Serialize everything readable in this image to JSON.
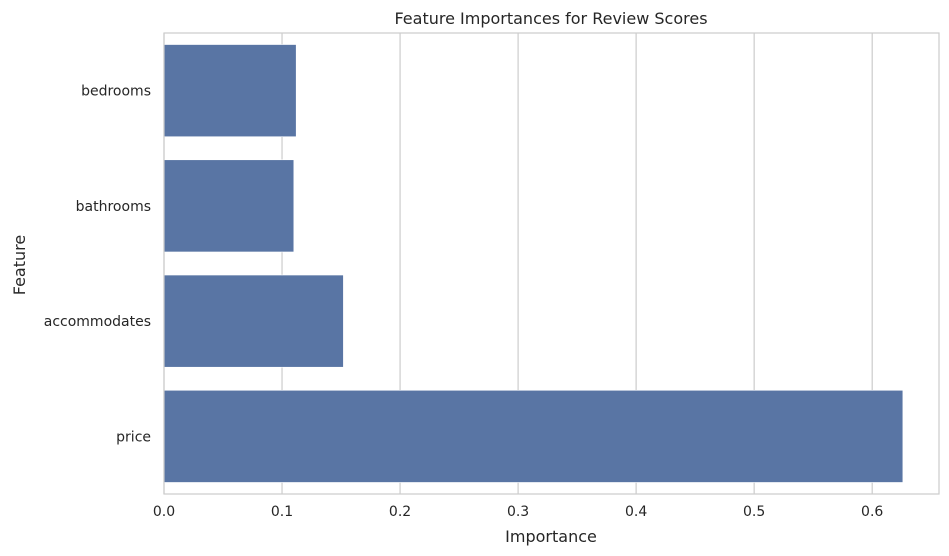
{
  "chart_data": {
    "type": "bar",
    "orientation": "horizontal",
    "title": "Feature Importances for Review Scores",
    "xlabel": "Importance",
    "ylabel": "Feature",
    "categories": [
      "bedrooms",
      "bathrooms",
      "accommodates",
      "price"
    ],
    "values": [
      0.112,
      0.11,
      0.152,
      0.626
    ],
    "xlim": [
      0,
      0.6566
    ],
    "xticks": [
      0.0,
      0.1,
      0.2,
      0.3,
      0.4,
      0.5,
      0.6
    ],
    "xtick_labels": [
      "0.0",
      "0.1",
      "0.2",
      "0.3",
      "0.4",
      "0.5",
      "0.6"
    ],
    "grid": "vertical",
    "bar_color": "#5975a4",
    "grid_color": "#cccccc",
    "spine_color": "#cccccc"
  }
}
